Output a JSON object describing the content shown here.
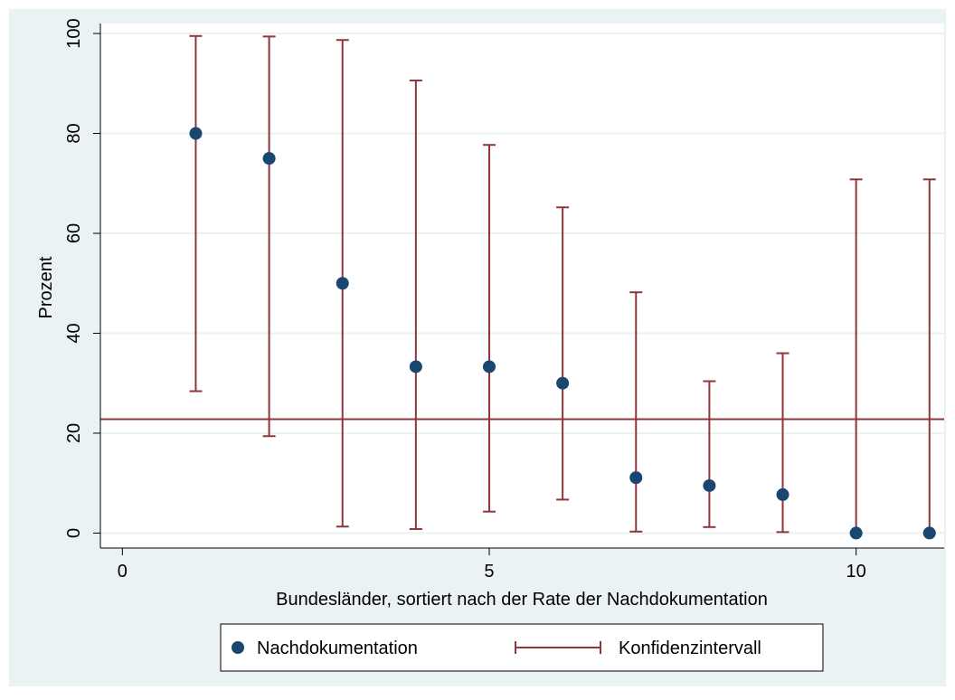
{
  "chart_data": {
    "type": "scatter",
    "title": "",
    "xlabel": "Bundesländer, sortiert nach der Rate der Nachdokumentation",
    "ylabel": "Prozent",
    "xlim": [
      -0.3,
      11.2
    ],
    "ylim": [
      -3,
      102
    ],
    "xticks": [
      0,
      5,
      10
    ],
    "yticks": [
      0,
      20,
      40,
      60,
      80,
      100
    ],
    "xtick_labels": [
      "0",
      "5",
      "10"
    ],
    "ytick_labels": [
      "0",
      "20",
      "40",
      "60",
      "80",
      "100"
    ],
    "grid": true,
    "legend_position": "bottom",
    "series": [
      {
        "name": "Nachdokumentation",
        "kind": "points",
        "color": "#1a476f",
        "x": [
          1,
          2,
          3,
          4,
          5,
          6,
          7,
          8,
          9,
          10,
          11
        ],
        "y": [
          80,
          75,
          50,
          33.3,
          33.3,
          30,
          11.1,
          9.5,
          7.7,
          0,
          0
        ]
      },
      {
        "name": "Konfidenzintervall",
        "kind": "errorbar",
        "color": "#90353b",
        "x": [
          1,
          2,
          3,
          4,
          5,
          6,
          7,
          8,
          9,
          10,
          11
        ],
        "lower": [
          28.4,
          19.4,
          1.3,
          0.8,
          4.3,
          6.7,
          0.3,
          1.2,
          0.2,
          0,
          0
        ],
        "upper": [
          99.5,
          99.4,
          98.7,
          90.6,
          77.7,
          65.2,
          48.2,
          30.4,
          36,
          70.8,
          70.8
        ]
      }
    ],
    "reference_line": {
      "y": 22.8,
      "color": "#90353b"
    }
  },
  "colors": {
    "outer_background": "#eaf2f3",
    "plot_background": "#ffffff",
    "grid": "#eaf2f3",
    "axis": "#000000"
  }
}
